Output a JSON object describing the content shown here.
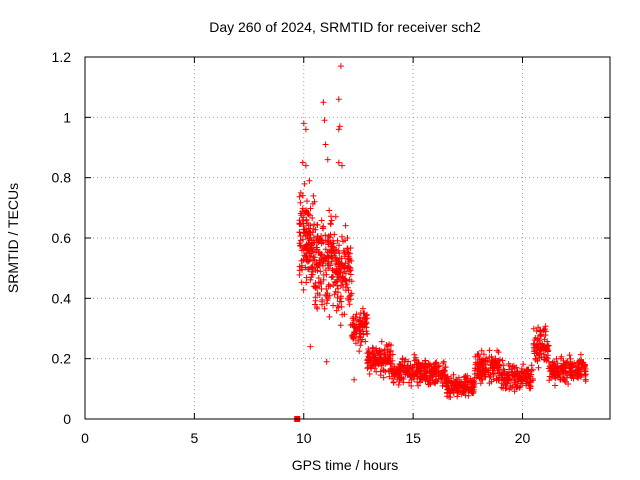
{
  "chart_data": {
    "type": "scatter",
    "title": "Day 260 of 2024, SRMTID for receiver sch2",
    "xlabel": "GPS time / hours",
    "ylabel": "SRMTID / TECUs",
    "xlim": [
      0,
      24
    ],
    "ylim": [
      0,
      1.2
    ],
    "xticks": [
      0,
      5,
      10,
      15,
      20
    ],
    "xtick_labels": [
      "0",
      "5",
      "10",
      "15",
      "20"
    ],
    "yticks": [
      0,
      0.2,
      0.4,
      0.6,
      0.8,
      1.0,
      1.2
    ],
    "ytick_labels": [
      "0",
      "0.2",
      "0.4",
      "0.6",
      "0.8",
      "1",
      "1.2"
    ],
    "grid": true,
    "marker": "+",
    "color": "#ff0000",
    "outliers": [
      {
        "x": 11.7,
        "y": 1.17
      },
      {
        "x": 11.6,
        "y": 1.06
      },
      {
        "x": 10.9,
        "y": 1.05
      },
      {
        "x": 10.0,
        "y": 0.98
      },
      {
        "x": 10.1,
        "y": 0.96
      },
      {
        "x": 10.95,
        "y": 0.99
      },
      {
        "x": 11.65,
        "y": 0.97
      },
      {
        "x": 11.6,
        "y": 0.96
      },
      {
        "x": 11.0,
        "y": 0.91
      },
      {
        "x": 9.95,
        "y": 0.85
      },
      {
        "x": 10.1,
        "y": 0.84
      },
      {
        "x": 11.1,
        "y": 0.86
      },
      {
        "x": 11.6,
        "y": 0.85
      },
      {
        "x": 11.75,
        "y": 0.84
      },
      {
        "x": 12.0,
        "y": 0.6
      },
      {
        "x": 11.05,
        "y": 0.19
      },
      {
        "x": 12.3,
        "y": 0.13
      },
      {
        "x": 10.3,
        "y": 0.24
      }
    ],
    "square_marker": {
      "x": 9.7,
      "y": 0.0
    },
    "clusters": [
      {
        "x0": 9.8,
        "x1": 10.5,
        "y_mid": 0.6,
        "y_spread": 0.22,
        "count": 140
      },
      {
        "x0": 10.5,
        "x1": 11.5,
        "y_mid": 0.52,
        "y_spread": 0.22,
        "count": 160
      },
      {
        "x0": 11.5,
        "x1": 12.2,
        "y_mid": 0.48,
        "y_spread": 0.2,
        "count": 110
      },
      {
        "x0": 12.2,
        "x1": 12.9,
        "y_mid": 0.3,
        "y_spread": 0.09,
        "count": 80
      },
      {
        "x0": 12.9,
        "x1": 14.0,
        "y_mid": 0.2,
        "y_spread": 0.07,
        "count": 130
      },
      {
        "x0": 14.0,
        "x1": 15.5,
        "y_mid": 0.16,
        "y_spread": 0.06,
        "count": 150
      },
      {
        "x0": 15.5,
        "x1": 16.5,
        "y_mid": 0.15,
        "y_spread": 0.06,
        "count": 110
      },
      {
        "x0": 16.5,
        "x1": 17.8,
        "y_mid": 0.11,
        "y_spread": 0.05,
        "count": 140
      },
      {
        "x0": 17.8,
        "x1": 19.0,
        "y_mid": 0.17,
        "y_spread": 0.07,
        "count": 130
      },
      {
        "x0": 19.0,
        "x1": 20.5,
        "y_mid": 0.14,
        "y_spread": 0.06,
        "count": 140
      },
      {
        "x0": 20.5,
        "x1": 21.2,
        "y_mid": 0.25,
        "y_spread": 0.1,
        "count": 80
      },
      {
        "x0": 21.2,
        "x1": 22.0,
        "y_mid": 0.16,
        "y_spread": 0.06,
        "count": 90
      },
      {
        "x0": 22.0,
        "x1": 22.9,
        "y_mid": 0.16,
        "y_spread": 0.06,
        "count": 90
      }
    ]
  }
}
